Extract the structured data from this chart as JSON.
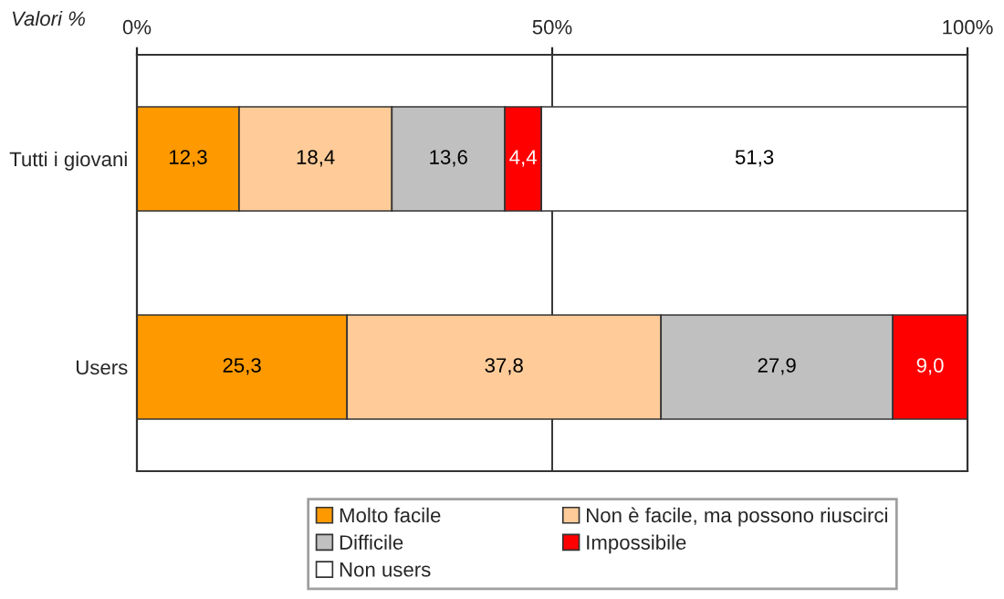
{
  "chart_data": {
    "type": "bar",
    "orientation": "horizontal",
    "stacked": true,
    "title": "Valori %",
    "categories": [
      "Tutti i giovani",
      "Users"
    ],
    "series": [
      {
        "name": "Molto facile",
        "color": "#ff9900",
        "values": [
          12.3,
          25.3
        ],
        "value_labels": [
          "12,3",
          "25,3"
        ]
      },
      {
        "name": "Non è facile, ma possono riuscirci",
        "color": "#ffcc99",
        "values": [
          18.4,
          37.8
        ],
        "value_labels": [
          "18,4",
          "37,8"
        ]
      },
      {
        "name": "Difficile",
        "color": "#c0c0c0",
        "values": [
          13.6,
          27.9
        ],
        "value_labels": [
          "13,6",
          "27,9"
        ]
      },
      {
        "name": "Impossibile",
        "color": "#ff0000",
        "values": [
          4.4,
          9.0
        ],
        "value_labels": [
          "4,4",
          "9,0"
        ]
      },
      {
        "name": "Non users",
        "color": "#ffffff",
        "values": [
          51.3,
          null
        ],
        "value_labels": [
          "51,3",
          null
        ]
      }
    ],
    "xlim": [
      0,
      100
    ],
    "xticks": [
      {
        "value": 0,
        "label": "0%"
      },
      {
        "value": 50,
        "label": "50%"
      },
      {
        "value": 100,
        "label": "100%"
      }
    ],
    "grid": "x",
    "legend": "bottom"
  }
}
